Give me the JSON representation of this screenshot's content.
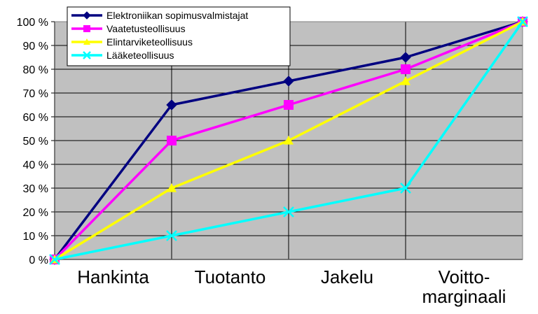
{
  "chart_data": {
    "type": "line",
    "categories": [
      "",
      "",
      "",
      "",
      ""
    ],
    "x_labels": [
      {
        "lines": [
          "Hankinta"
        ]
      },
      {
        "lines": [
          "Tuotanto"
        ]
      },
      {
        "lines": [
          "Jakelu"
        ]
      },
      {
        "lines": [
          "Voitto-",
          "marginaali"
        ]
      }
    ],
    "y_ticks": [
      "0 %",
      "10 %",
      "20 %",
      "30 %",
      "40 %",
      "50 %",
      "60 %",
      "70 %",
      "80 %",
      "90 %",
      "100 %"
    ],
    "ylim": [
      0,
      100
    ],
    "grid": true,
    "legend_position": "top-left",
    "series": [
      {
        "name": "Elektroniikan sopimusvalmistajat",
        "color": "#000080",
        "marker": "diamond",
        "values": [
          0,
          65,
          75,
          85,
          100
        ]
      },
      {
        "name": "Vaatetusteollisuus",
        "color": "#ff00ff",
        "marker": "square",
        "values": [
          0,
          50,
          65,
          80,
          100
        ]
      },
      {
        "name": "Elintarviketeollisuus",
        "color": "#ffff00",
        "marker": "triangle",
        "values": [
          0,
          30,
          50,
          75,
          100
        ]
      },
      {
        "name": "Lääketeollisuus",
        "color": "#00ffff",
        "marker": "x",
        "values": [
          0,
          10,
          20,
          30,
          100
        ]
      }
    ],
    "colors": {
      "plot_background": "#c0c0c0",
      "gridline": "#000000"
    }
  }
}
